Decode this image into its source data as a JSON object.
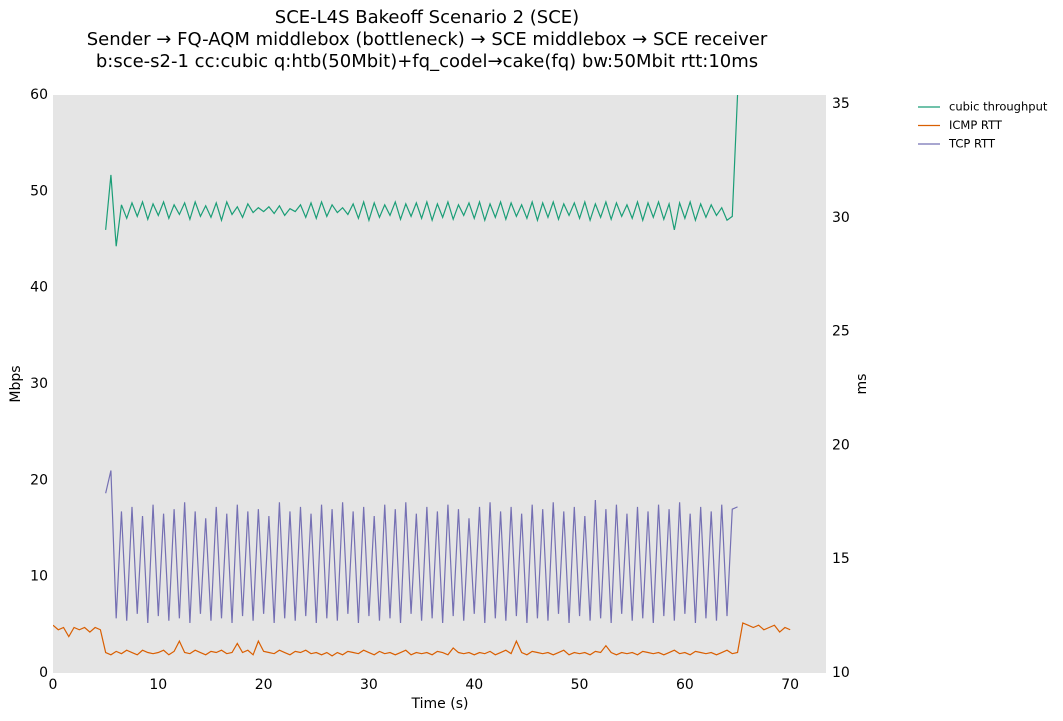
{
  "chart_data": {
    "type": "line",
    "title": "SCE-L4S Bakeoff Scenario 2 (SCE)",
    "subtitle": [
      "Sender → FQ-AQM middlebox (bottleneck) → SCE middlebox → SCE receiver",
      "b:sce-s2-1 cc:cubic q:htb(50Mbit)+fq_codel→cake(fq) bw:50Mbit rtt:10ms"
    ],
    "xlabel": "Time (s)",
    "ylabel": "Mbps",
    "y2label": "ms",
    "xlim": [
      0,
      73.4
    ],
    "xticks": [
      0,
      10,
      20,
      30,
      40,
      50,
      60,
      70
    ],
    "ylim": [
      0,
      60
    ],
    "yticks": [
      0,
      10,
      20,
      30,
      40,
      50,
      60
    ],
    "y2lim": [
      10,
      35.4
    ],
    "y2ticks": [
      10,
      15,
      20,
      25,
      30,
      35
    ],
    "grid": false,
    "legend": "outside-upper-right",
    "background": "#e5e5e5",
    "x": [
      0,
      0.5,
      1,
      1.5,
      2,
      2.5,
      3,
      3.5,
      4,
      4.5,
      5,
      5.5,
      6,
      6.5,
      7,
      7.5,
      8,
      8.5,
      9,
      9.5,
      10,
      10.5,
      11,
      11.5,
      12,
      12.5,
      13,
      13.5,
      14,
      14.5,
      15,
      15.5,
      16,
      16.5,
      17,
      17.5,
      18,
      18.5,
      19,
      19.5,
      20,
      20.5,
      21,
      21.5,
      22,
      22.5,
      23,
      23.5,
      24,
      24.5,
      25,
      25.5,
      26,
      26.5,
      27,
      27.5,
      28,
      28.5,
      29,
      29.5,
      30,
      30.5,
      31,
      31.5,
      32,
      32.5,
      33,
      33.5,
      34,
      34.5,
      35,
      35.5,
      36,
      36.5,
      37,
      37.5,
      38,
      38.5,
      39,
      39.5,
      40,
      40.5,
      41,
      41.5,
      42,
      42.5,
      43,
      43.5,
      44,
      44.5,
      45,
      45.5,
      46,
      46.5,
      47,
      47.5,
      48,
      48.5,
      49,
      49.5,
      50,
      50.5,
      51,
      51.5,
      52,
      52.5,
      53,
      53.5,
      54,
      54.5,
      55,
      55.5,
      56,
      56.5,
      57,
      57.5,
      58,
      58.5,
      59,
      59.5,
      60,
      60.5,
      61,
      61.5,
      62,
      62.5,
      63,
      63.5,
      64,
      64.5,
      65,
      65.5,
      66,
      66.5,
      67,
      67.5,
      68,
      68.5,
      69,
      69.5,
      70
    ],
    "series": [
      {
        "name": "cubic throughput",
        "color": "#1b9e77",
        "axis": "y",
        "values": [
          null,
          null,
          null,
          null,
          null,
          null,
          null,
          null,
          null,
          null,
          46,
          51.7,
          44.3,
          48.6,
          47.2,
          48.8,
          47.4,
          48.9,
          47.1,
          48.7,
          47.5,
          48.9,
          47.2,
          48.6,
          47.6,
          48.8,
          47.1,
          48.9,
          47.4,
          48.5,
          47.3,
          48.8,
          47.0,
          48.9,
          47.6,
          48.4,
          47.3,
          48.7,
          47.8,
          48.3,
          47.9,
          48.4,
          47.7,
          48.5,
          47.5,
          48.2,
          47.9,
          48.6,
          47.3,
          48.8,
          47.2,
          48.9,
          47.4,
          48.6,
          47.8,
          48.3,
          47.6,
          48.7,
          47.2,
          48.9,
          47.0,
          48.8,
          47.3,
          48.6,
          47.5,
          48.9,
          47.1,
          48.7,
          47.4,
          48.8,
          47.2,
          48.9,
          47.0,
          48.7,
          47.3,
          48.9,
          47.1,
          48.6,
          47.5,
          48.8,
          47.2,
          48.9,
          47.0,
          48.7,
          47.3,
          48.9,
          47.1,
          48.8,
          47.4,
          48.6,
          47.2,
          48.9,
          47.0,
          48.8,
          47.3,
          48.9,
          47.1,
          48.7,
          47.5,
          48.8,
          47.2,
          48.9,
          47.0,
          48.7,
          47.3,
          48.9,
          47.1,
          48.8,
          47.4,
          48.6,
          47.2,
          48.9,
          47.0,
          48.8,
          47.3,
          48.9,
          47.1,
          48.7,
          46.0,
          48.8,
          47.2,
          48.9,
          47.0,
          48.7,
          47.3,
          48.6,
          47.5,
          48.3,
          47.0,
          47.4,
          60,
          null,
          null,
          null,
          null,
          null,
          null,
          null,
          null,
          null,
          null
        ]
      },
      {
        "name": "ICMP RTT",
        "color": "#d95f02",
        "axis": "y2",
        "values": [
          12.1,
          11.9,
          12.0,
          11.6,
          12.0,
          11.9,
          12.0,
          11.8,
          12.0,
          11.9,
          10.9,
          10.8,
          10.95,
          10.85,
          11.0,
          10.9,
          10.8,
          11.0,
          10.9,
          10.85,
          10.9,
          11.0,
          10.8,
          10.95,
          11.4,
          10.9,
          10.85,
          11.0,
          10.9,
          10.8,
          10.95,
          10.9,
          11.0,
          10.85,
          10.9,
          11.3,
          10.9,
          11.0,
          10.8,
          11.4,
          10.95,
          10.9,
          10.85,
          11.0,
          10.9,
          10.8,
          10.95,
          10.9,
          11.0,
          10.85,
          10.9,
          10.8,
          10.9,
          10.75,
          10.9,
          10.8,
          10.95,
          10.9,
          10.85,
          11.0,
          10.9,
          10.8,
          10.95,
          10.85,
          10.9,
          10.8,
          10.9,
          11.0,
          10.8,
          10.9,
          10.85,
          10.9,
          10.8,
          10.95,
          10.9,
          10.8,
          11.1,
          10.9,
          10.85,
          10.9,
          10.8,
          10.9,
          10.85,
          10.95,
          10.8,
          10.9,
          11.0,
          10.85,
          11.4,
          10.9,
          10.8,
          10.95,
          10.9,
          10.85,
          10.9,
          10.8,
          10.9,
          11.0,
          10.8,
          10.9,
          10.85,
          10.9,
          10.8,
          10.95,
          10.9,
          11.2,
          10.9,
          10.8,
          10.9,
          10.85,
          10.9,
          10.8,
          10.95,
          10.9,
          10.85,
          10.9,
          10.8,
          10.9,
          11.0,
          10.85,
          10.9,
          10.8,
          10.95,
          10.9,
          10.85,
          10.9,
          10.8,
          10.9,
          11.0,
          10.85,
          10.9,
          12.2,
          12.1,
          12.0,
          12.1,
          11.9,
          12.0,
          12.1,
          11.8,
          12.0,
          11.9
        ]
      },
      {
        "name": "TCP RTT",
        "color": "#7570b3",
        "axis": "y2",
        "values": [
          null,
          null,
          null,
          null,
          null,
          null,
          null,
          null,
          null,
          null,
          17.9,
          18.9,
          12.4,
          17.1,
          12.3,
          17.3,
          12.6,
          16.9,
          12.2,
          17.4,
          12.5,
          17.0,
          12.3,
          17.2,
          12.4,
          17.5,
          12.2,
          17.1,
          12.6,
          16.8,
          12.3,
          17.3,
          12.4,
          17.0,
          12.2,
          17.4,
          12.5,
          17.1,
          12.3,
          17.2,
          12.6,
          16.9,
          12.2,
          17.5,
          12.4,
          17.1,
          12.3,
          17.3,
          12.5,
          17.0,
          12.2,
          17.4,
          12.4,
          17.2,
          12.3,
          17.5,
          12.6,
          17.1,
          12.2,
          17.3,
          12.5,
          16.9,
          12.3,
          17.4,
          12.4,
          17.2,
          12.2,
          17.5,
          12.6,
          17.0,
          12.3,
          17.3,
          12.4,
          17.1,
          12.2,
          17.4,
          12.5,
          17.2,
          12.3,
          16.8,
          12.6,
          17.3,
          12.2,
          17.5,
          12.4,
          17.1,
          12.3,
          17.3,
          12.5,
          17.0,
          12.2,
          17.4,
          12.4,
          17.2,
          12.3,
          17.5,
          12.6,
          17.1,
          12.2,
          17.3,
          12.5,
          16.9,
          12.3,
          17.6,
          12.4,
          17.2,
          12.2,
          17.4,
          12.6,
          17.0,
          12.3,
          17.3,
          12.4,
          17.1,
          12.2,
          17.4,
          12.5,
          17.2,
          12.3,
          17.5,
          12.6,
          17.0,
          12.2,
          17.3,
          12.4,
          17.1,
          12.3,
          17.4,
          12.5,
          17.2,
          17.3,
          null,
          null,
          null,
          null,
          null,
          null,
          null,
          null,
          null,
          null
        ]
      }
    ]
  }
}
